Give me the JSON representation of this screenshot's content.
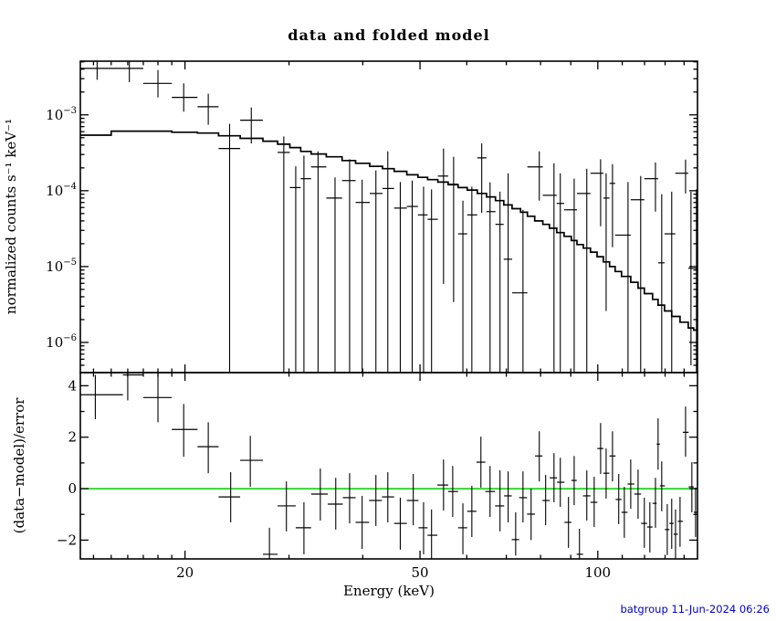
{
  "title": "data and folded model",
  "footer": {
    "timestamp": "batgroup 11-Jun-2024 06:26",
    "color": "#0000cc"
  },
  "colors": {
    "background": "#ffffff",
    "axis": "#000000",
    "data": "#000000",
    "model": "#000000",
    "zero_line": "#00cc00",
    "timestamp": "#0000cc"
  },
  "chart_data": {
    "type": "line",
    "subtype": "xspec-spectrum-with-residuals",
    "title": "data and folded model",
    "xlabel": "Energy (keV)",
    "xscale": "log",
    "x_range_kev": [
      13.3,
      147.5
    ],
    "x_major_ticks": [
      20,
      50,
      100
    ],
    "x_minor_ticks": [
      14,
      15,
      16,
      17,
      18,
      19,
      30,
      40,
      60,
      70,
      80,
      90,
      110,
      120,
      130,
      140
    ],
    "point_format": [
      "e",
      "elo",
      "ehi",
      "v",
      "vlo",
      "vhi"
    ],
    "top_panel": {
      "ylabel": "normalized counts s⁻¹ keV⁻¹",
      "yscale": "log",
      "y_range": [
        4e-07,
        0.0051
      ],
      "y_tick_exponents": [
        -3,
        -4,
        -5,
        -6
      ],
      "model_steps": [
        [
          13.3,
          0.00054
        ],
        [
          15.0,
          0.00061
        ],
        [
          19.0,
          0.00059
        ],
        [
          21.0,
          0.000575
        ],
        [
          22.8,
          0.00053
        ],
        [
          24.8,
          0.00049
        ],
        [
          27.1,
          0.00045
        ],
        [
          28.7,
          0.00041
        ],
        [
          30.1,
          0.00037
        ],
        [
          31.4,
          0.00033
        ],
        [
          32.7,
          0.000305
        ],
        [
          34.7,
          0.00028
        ],
        [
          36.9,
          0.00025
        ],
        [
          38.9,
          0.00023
        ],
        [
          41.1,
          0.00021
        ],
        [
          43.2,
          0.000195
        ],
        [
          45.2,
          0.00018
        ],
        [
          47.5,
          0.000162
        ],
        [
          49.6,
          0.00015
        ],
        [
          51.5,
          0.00014
        ],
        [
          53.6,
          0.00013
        ],
        [
          55.8,
          0.00012
        ],
        [
          58.0,
          0.00011
        ],
        [
          60.1,
          0.000102
        ],
        [
          62.5,
          9.2e-05
        ],
        [
          64.8,
          8.3e-05
        ],
        [
          67.1,
          7.4e-05
        ],
        [
          69.3,
          6.5e-05
        ],
        [
          71.6,
          5.8e-05
        ],
        [
          74.0,
          5.2e-05
        ],
        [
          76.0,
          4.6e-05
        ],
        [
          78.2,
          4e-05
        ],
        [
          80.7,
          3.6e-05
        ],
        [
          82.8,
          3.2e-05
        ],
        [
          85.2,
          2.8e-05
        ],
        [
          87.7,
          2.5e-05
        ],
        [
          90.2,
          2.2e-05
        ],
        [
          92.2,
          1.95e-05
        ],
        [
          94.5,
          1.75e-05
        ],
        [
          97.2,
          1.55e-05
        ],
        [
          99.7,
          1.35e-05
        ],
        [
          102.2,
          1.15e-05
        ],
        [
          104.7,
          1e-05
        ],
        [
          107.0,
          8.6e-06
        ],
        [
          109.7,
          7.4e-06
        ],
        [
          113.7,
          6.2e-06
        ],
        [
          117.0,
          5.2e-06
        ],
        [
          119.9,
          4.4e-06
        ],
        [
          123.8,
          3.7e-06
        ],
        [
          126.5,
          3.1e-06
        ],
        [
          129.7,
          2.6e-06
        ],
        [
          133.4,
          2.2e-06
        ],
        [
          137.8,
          1.85e-06
        ],
        [
          142.3,
          1.55e-06
        ],
        [
          145.3,
          1.45e-06
        ],
        [
          147.5,
          1.45e-06
        ]
      ],
      "points": [
        [
          14.2,
          13.3,
          15.7,
          0.0041,
          0.0029,
          0.006
        ],
        [
          16.1,
          15.7,
          17.0,
          0.0041,
          0.0027,
          0.006
        ],
        [
          18.0,
          17.0,
          19.0,
          0.0026,
          0.0017,
          0.0039
        ],
        [
          19.9,
          19.0,
          21.0,
          0.0017,
          0.0011,
          0.0026
        ],
        [
          21.9,
          21.0,
          22.8,
          0.00128,
          0.00074,
          0.0019
        ],
        [
          23.8,
          22.8,
          24.8,
          0.00036,
          1e-07,
          0.00076
        ],
        [
          25.9,
          24.8,
          27.1,
          0.00085,
          0.00042,
          0.00125
        ],
        [
          29.4,
          28.7,
          30.1,
          0.00032,
          1e-07,
          0.00052
        ],
        [
          30.8,
          30.1,
          31.4,
          0.00011,
          1e-07,
          0.00021
        ],
        [
          31.8,
          31.4,
          32.7,
          0.000144,
          1e-07,
          0.00029
        ],
        [
          33.6,
          32.7,
          34.7,
          0.000206,
          1e-07,
          0.00033
        ],
        [
          35.9,
          34.7,
          36.9,
          8e-05,
          1e-07,
          0.00015
        ],
        [
          38.0,
          36.9,
          38.9,
          0.000136,
          1e-07,
          0.00026
        ],
        [
          39.9,
          38.9,
          41.1,
          7e-05,
          1e-07,
          0.00014
        ],
        [
          42.1,
          41.1,
          43.2,
          9.2e-05,
          1e-07,
          0.000185
        ],
        [
          44.1,
          43.2,
          45.2,
          0.000107,
          1e-07,
          0.00033
        ],
        [
          46.3,
          45.2,
          47.5,
          5.9e-05,
          1e-07,
          0.00013
        ],
        [
          48.5,
          47.5,
          49.6,
          6.2e-05,
          1e-07,
          0.000136
        ],
        [
          50.7,
          49.6,
          51.5,
          4.8e-05,
          1e-07,
          0.000113
        ],
        [
          52.3,
          51.5,
          53.6,
          4.2e-05,
          1e-07,
          0.000104
        ],
        [
          54.8,
          53.6,
          55.8,
          0.000156,
          5.9e-06,
          0.00036
        ],
        [
          57.0,
          55.8,
          58.0,
          0.000122,
          3.4e-06,
          0.00028
        ],
        [
          59.1,
          58.0,
          60.1,
          2.7e-05,
          1e-07,
          7.4e-05
        ],
        [
          61.2,
          60.1,
          62.5,
          4.8e-05,
          1e-07,
          0.000113
        ],
        [
          63.6,
          62.5,
          64.8,
          0.000271,
          5.1e-05,
          0.00042
        ],
        [
          65.7,
          64.8,
          67.1,
          5.3e-05,
          1e-07,
          0.000129
        ],
        [
          68.3,
          67.1,
          69.3,
          3.6e-05,
          1e-07,
          9.7e-05
        ],
        [
          70.5,
          69.3,
          71.6,
          1.25e-05,
          1e-07,
          0.00017
        ],
        [
          74.7,
          71.6,
          76.0,
          4.5e-06,
          1e-07,
          5.6e-05
        ],
        [
          79.6,
          76.0,
          80.7,
          0.000206,
          7.4e-05,
          0.00033
        ],
        [
          84.3,
          80.7,
          85.2,
          8.7e-05,
          1e-07,
          0.00023
        ],
        [
          86.4,
          85.2,
          87.7,
          6.8e-05,
          1e-07,
          0.00017
        ],
        [
          91.2,
          87.7,
          92.2,
          5.6e-05,
          1e-07,
          0.000144
        ],
        [
          95.8,
          92.2,
          97.2,
          9.2e-05,
          1e-07,
          0.000195
        ],
        [
          101.1,
          97.2,
          102.2,
          0.00017,
          3.4e-05,
          0.00026
        ],
        [
          103.3,
          102.2,
          104.7,
          8e-05,
          2.6e-06,
          0.00017
        ],
        [
          105.9,
          104.7,
          107.0,
          0.000125,
          1.8e-05,
          0.000224
        ],
        [
          112.5,
          107.0,
          113.7,
          2.6e-05,
          1e-07,
          0.00013
        ],
        [
          118.2,
          113.7,
          119.9,
          7.6e-05,
          1e-07,
          0.000156
        ],
        [
          125.2,
          119.9,
          126.5,
          0.000144,
          5.3e-05,
          0.000236
        ],
        [
          128.3,
          126.5,
          129.7,
          1.12e-05,
          1e-07,
          9e-05
        ],
        [
          133.4,
          129.7,
          135.3,
          2.7e-05,
          1e-07,
          9.7e-05
        ],
        [
          140.8,
          135.3,
          142.3,
          0.00017,
          9.2e-05,
          0.000257
        ],
        [
          143.8,
          142.3,
          145.3,
          9.5e-06,
          5e-07,
          9.7e-05
        ],
        [
          146.9,
          145.3,
          147.5,
          9.5e-06,
          1e-07,
          0.000104
        ]
      ]
    },
    "bottom_panel": {
      "ylabel": "(data−model)/error",
      "yscale": "linear",
      "y_range": [
        -2.73,
        4.51
      ],
      "y_major_ticks": [
        -2,
        0,
        2,
        4
      ],
      "y_minor_ticks": [
        -1,
        1,
        3
      ],
      "zero_line_value": 0,
      "points": [
        [
          14.1,
          13.3,
          15.7,
          3.65,
          2.7,
          4.42
        ],
        [
          16.0,
          15.7,
          17.0,
          4.42,
          3.43,
          4.6
        ],
        [
          18.0,
          17.0,
          19.0,
          3.54,
          2.58,
          4.5
        ],
        [
          19.9,
          19.0,
          21.0,
          2.3,
          1.24,
          3.29
        ],
        [
          21.9,
          21.0,
          22.8,
          1.63,
          0.6,
          2.58
        ],
        [
          23.9,
          22.8,
          24.8,
          -0.32,
          -1.31,
          0.64
        ],
        [
          25.8,
          24.8,
          27.1,
          1.1,
          0.07,
          2.05
        ],
        [
          27.8,
          27.1,
          28.7,
          -2.55,
          -9,
          -1.52
        ],
        [
          29.7,
          28.7,
          30.8,
          -0.67,
          -1.66,
          0.28
        ],
        [
          31.8,
          30.8,
          32.7,
          -1.52,
          -2.55,
          -0.53
        ],
        [
          33.9,
          32.7,
          34.9,
          -0.21,
          -1.24,
          0.78
        ],
        [
          36.0,
          34.9,
          37.0,
          -0.6,
          -1.59,
          0.42
        ],
        [
          38.0,
          37.0,
          38.9,
          -0.35,
          -1.35,
          0.6
        ],
        [
          39.9,
          38.9,
          41.0,
          -1.31,
          -2.34,
          -0.28
        ],
        [
          42.1,
          41.0,
          43.1,
          -0.46,
          -1.45,
          0.53
        ],
        [
          44.1,
          43.1,
          45.2,
          -0.32,
          -1.31,
          0.64
        ],
        [
          46.3,
          45.2,
          47.5,
          -1.35,
          -2.37,
          -0.35
        ],
        [
          48.7,
          47.5,
          49.7,
          -0.46,
          -1.42,
          0.57
        ],
        [
          50.7,
          49.7,
          51.5,
          -1.52,
          -2.55,
          -0.53
        ],
        [
          52.3,
          51.5,
          53.5,
          -1.81,
          -2.8,
          -0.81
        ],
        [
          54.8,
          53.5,
          55.8,
          0.14,
          -0.85,
          1.13
        ],
        [
          56.8,
          55.8,
          58.0,
          -0.11,
          -1.1,
          0.88
        ],
        [
          59.1,
          58.0,
          60.1,
          -1.52,
          -2.55,
          -0.57
        ],
        [
          61.2,
          60.1,
          62.3,
          -0.88,
          -1.88,
          0.11
        ],
        [
          63.4,
          62.3,
          64.5,
          1.03,
          0.04,
          2.02
        ],
        [
          65.7,
          64.5,
          67.0,
          -0.11,
          -1.1,
          0.88
        ],
        [
          68.3,
          67.0,
          69.4,
          -0.67,
          -1.66,
          0.71
        ],
        [
          70.5,
          69.4,
          71.5,
          -0.28,
          -1.31,
          0.67
        ],
        [
          72.6,
          71.5,
          73.6,
          -1.98,
          -2.6,
          -0.92
        ],
        [
          74.7,
          73.6,
          75.9,
          -0.35,
          -1.31,
          0.67
        ],
        [
          77.1,
          75.9,
          78.3,
          -0.99,
          -2.0,
          0.0
        ],
        [
          79.6,
          78.3,
          80.6,
          1.27,
          0.28,
          2.23
        ],
        [
          81.6,
          80.6,
          82.9,
          -0.46,
          -1.42,
          0.53
        ],
        [
          84.3,
          82.9,
          85.3,
          0.42,
          -0.53,
          1.38
        ],
        [
          86.4,
          85.3,
          87.8,
          0.25,
          -0.71,
          1.2
        ],
        [
          89.2,
          87.8,
          90.2,
          -1.31,
          -2.3,
          -0.32
        ],
        [
          91.2,
          90.2,
          92.1,
          0.32,
          -0.64,
          1.27
        ],
        [
          93.1,
          92.1,
          94.4,
          -2.55,
          -9,
          -1.56
        ],
        [
          95.8,
          94.4,
          97.2,
          -0.28,
          -1.24,
          0.71
        ],
        [
          98.6,
          97.2,
          99.8,
          -0.53,
          -1.49,
          0.46
        ],
        [
          101.1,
          99.8,
          102.2,
          1.56,
          0.57,
          2.55
        ],
        [
          103.3,
          102.2,
          104.6,
          0.6,
          -0.39,
          1.56
        ],
        [
          105.9,
          104.6,
          107.2,
          1.27,
          0.28,
          2.23
        ],
        [
          108.5,
          107.2,
          109.7,
          -0.42,
          -1.38,
          0.57
        ],
        [
          110.9,
          109.7,
          112.3,
          -0.92,
          -1.91,
          0.07
        ],
        [
          113.7,
          112.3,
          115.3,
          0.18,
          -0.78,
          1.13
        ],
        [
          117.0,
          115.3,
          118.4,
          -0.21,
          -1.17,
          0.74
        ],
        [
          119.9,
          118.4,
          121.2,
          -1.35,
          -2.3,
          -0.35
        ],
        [
          122.5,
          121.2,
          123.8,
          -1.49,
          -2.48,
          -0.53
        ],
        [
          125.2,
          123.8,
          125.8,
          -0.57,
          -1.52,
          0.42
        ],
        [
          126.5,
          125.8,
          127.4,
          1.73,
          0.74,
          2.73
        ],
        [
          128.3,
          127.4,
          129.9,
          0.11,
          -0.88,
          1.06
        ],
        [
          131.1,
          129.9,
          132.2,
          -1.59,
          -2.58,
          -0.6
        ],
        [
          133.4,
          132.2,
          134.4,
          -1.35,
          -2.34,
          -0.39
        ],
        [
          135.4,
          134.4,
          136.6,
          -1.77,
          -2.76,
          -0.81
        ],
        [
          137.8,
          136.6,
          139.3,
          -1.27,
          -2.26,
          -0.32
        ],
        [
          140.8,
          139.3,
          142.5,
          2.19,
          1.24,
          3.19
        ],
        [
          144.3,
          142.5,
          145.4,
          0.07,
          -0.92,
          1.03
        ],
        [
          146.4,
          145.4,
          147.5,
          -0.92,
          -1.88,
          0.04
        ]
      ]
    }
  }
}
